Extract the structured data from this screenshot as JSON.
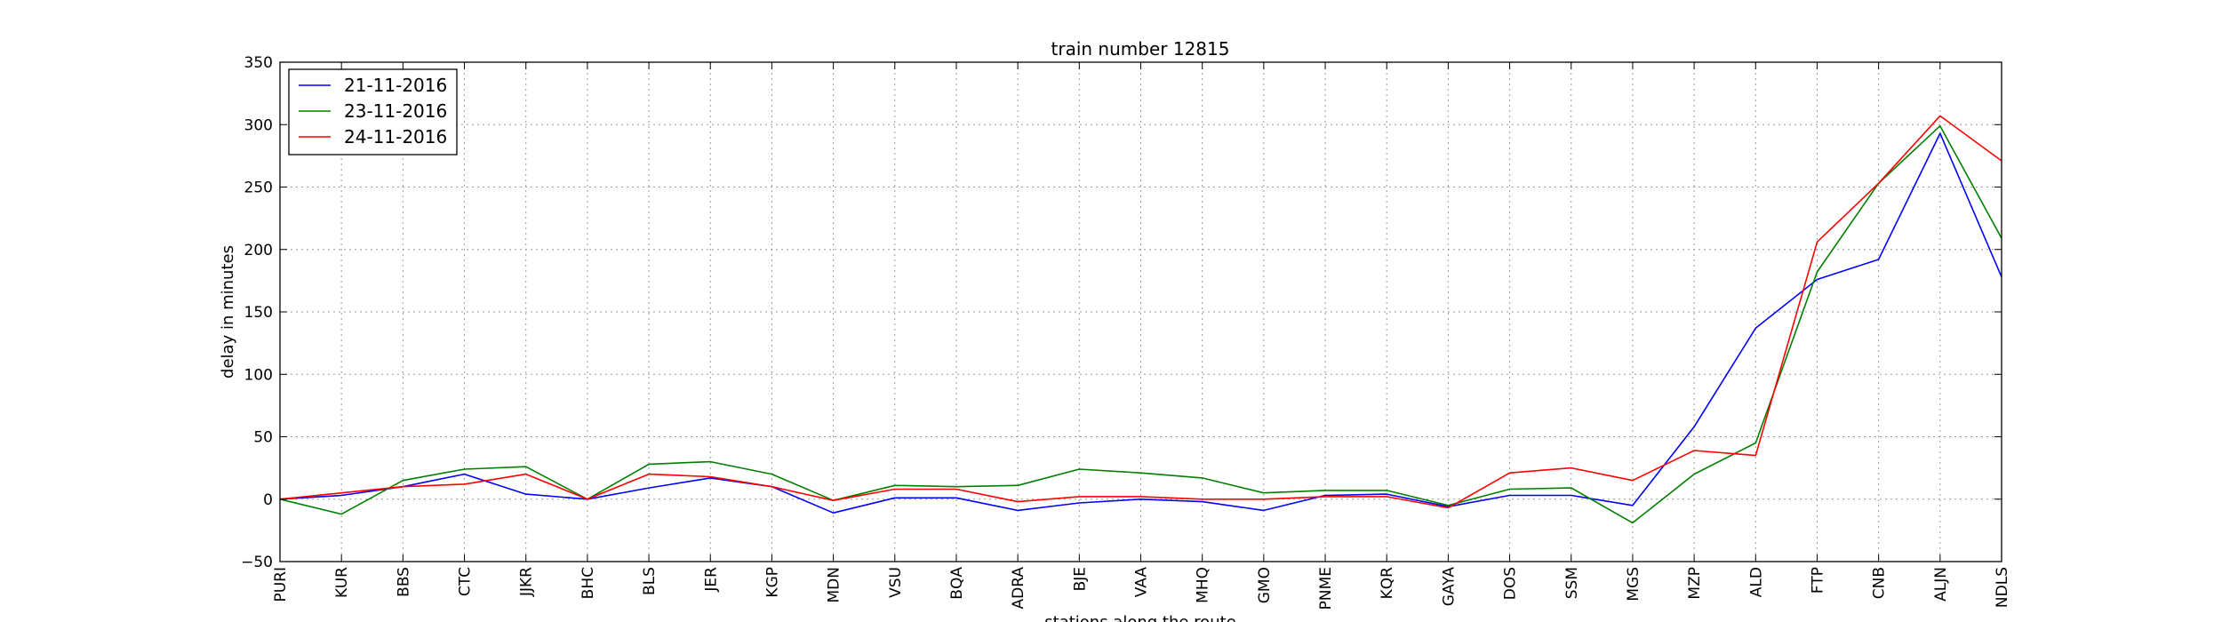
{
  "chart_data": {
    "type": "line",
    "title": "train number 12815",
    "xlabel": "stations along the route",
    "ylabel": "delay in minutes",
    "ylim": [
      -50,
      350
    ],
    "yticks": [
      -50,
      0,
      50,
      100,
      150,
      200,
      250,
      300,
      350
    ],
    "grid": true,
    "legend_position": "top-left",
    "categories": [
      "PURI",
      "KUR",
      "BBS",
      "CTC",
      "JJKR",
      "BHC",
      "BLS",
      "JER",
      "KGP",
      "MDN",
      "VSU",
      "BQA",
      "ADRA",
      "BJE",
      "VAA",
      "MHQ",
      "GMO",
      "PNME",
      "KQR",
      "GAYA",
      "DOS",
      "SSM",
      "MGS",
      "MZP",
      "ALD",
      "FTP",
      "CNB",
      "ALJN",
      "NDLS"
    ],
    "series": [
      {
        "name": "21-11-2016",
        "color": "#0000ff",
        "values": [
          0,
          3,
          10,
          20,
          4,
          0,
          9,
          17,
          10,
          -11,
          1,
          1,
          -9,
          -3,
          0,
          -2,
          -9,
          3,
          4,
          -6,
          3,
          3,
          -5,
          58,
          137,
          176,
          192,
          293,
          178
        ]
      },
      {
        "name": "23-11-2016",
        "color": "#008000",
        "values": [
          0,
          -12,
          15,
          24,
          26,
          0,
          28,
          30,
          20,
          -1,
          11,
          10,
          11,
          24,
          21,
          17,
          5,
          7,
          7,
          -5,
          8,
          9,
          -19,
          20,
          45,
          182,
          253,
          299,
          209
        ]
      },
      {
        "name": "24-11-2016",
        "color": "#ff0000",
        "values": [
          0,
          5,
          10,
          12,
          20,
          0,
          20,
          18,
          10,
          -1,
          8,
          8,
          -2,
          2,
          2,
          0,
          0,
          2,
          2,
          -7,
          21,
          25,
          15,
          39,
          35,
          206,
          253,
          307,
          271
        ]
      }
    ]
  }
}
